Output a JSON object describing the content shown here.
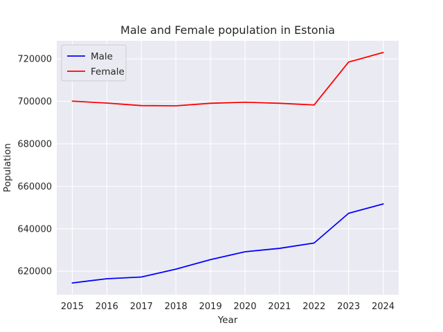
{
  "chart_data": {
    "type": "line",
    "title": "Male and Female population in Estonia",
    "xlabel": "Year",
    "ylabel": "Population",
    "x": [
      2015,
      2016,
      2017,
      2018,
      2019,
      2020,
      2021,
      2022,
      2023,
      2024
    ],
    "series": [
      {
        "name": "Male",
        "color": "#0000ff",
        "values": [
          614500,
          616500,
          617300,
          621000,
          625500,
          629200,
          630800,
          633300,
          647300,
          651700
        ]
      },
      {
        "name": "Female",
        "color": "#ff0000",
        "values": [
          700100,
          699200,
          698000,
          697900,
          699100,
          699600,
          699100,
          698300,
          718500,
          723000
        ]
      }
    ],
    "xlim": [
      2014.55,
      2024.45
    ],
    "ylim": [
      609000,
      728500
    ],
    "yticks": [
      620000,
      640000,
      660000,
      680000,
      700000,
      720000
    ],
    "grid": true,
    "legend_position": "top-left"
  }
}
